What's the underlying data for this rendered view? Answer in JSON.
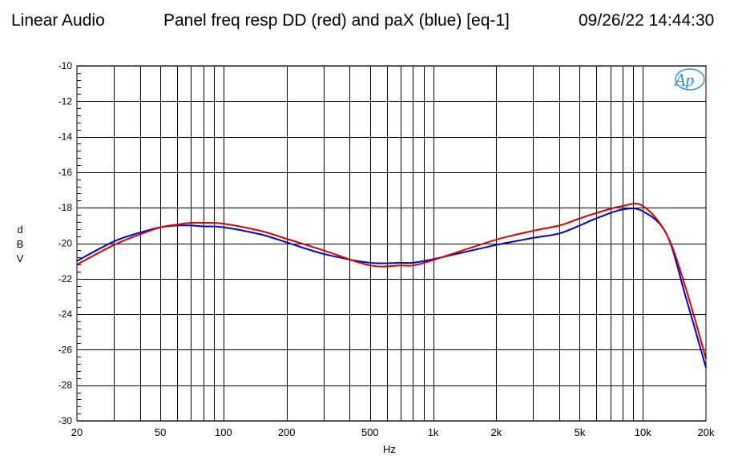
{
  "header": {
    "left": "Linear Audio",
    "title": "Panel freq resp DD (red) and paX (blue) [eq-1]",
    "timestamp": "09/26/22 14:44:30"
  },
  "logo": {
    "text": "Ap",
    "color": "#2a8fd0"
  },
  "axes": {
    "ylabel_lines": [
      "d",
      "B",
      "V"
    ],
    "xlabel": "Hz"
  },
  "chart_data": {
    "type": "line",
    "title": "Panel freq resp DD (red) and paX (blue) [eq-1]",
    "xlabel": "Hz",
    "ylabel": "dBV",
    "xscale": "log",
    "xlim": [
      20,
      20000
    ],
    "ylim": [
      -30,
      -10
    ],
    "xticks": [
      20,
      50,
      100,
      200,
      500,
      1000,
      2000,
      5000,
      10000,
      20000
    ],
    "xtick_labels": [
      "20",
      "50",
      "100",
      "200",
      "500",
      "1k",
      "2k",
      "5k",
      "10k",
      "20k"
    ],
    "yticks": [
      -10,
      -12,
      -14,
      -16,
      -18,
      -20,
      -22,
      -24,
      -26,
      -28,
      -30
    ],
    "ytick_labels": [
      "-10",
      "-12",
      "-14",
      "-16",
      "-18",
      "-20",
      "-22",
      "-24",
      "-26",
      "-28",
      "-30"
    ],
    "grid": true,
    "series": [
      {
        "name": "paX (blue)",
        "color": "#0000cc",
        "x": [
          20,
          30,
          40,
          50,
          60,
          70,
          80,
          100,
          150,
          200,
          300,
          500,
          700,
          800,
          1000,
          2000,
          3000,
          4000,
          5000,
          6000,
          8000,
          10000,
          13000,
          16000,
          20000
        ],
        "y": [
          -21.0,
          -19.9,
          -19.4,
          -19.1,
          -19.0,
          -19.0,
          -19.05,
          -19.1,
          -19.5,
          -19.95,
          -20.6,
          -21.1,
          -21.1,
          -21.1,
          -20.9,
          -20.1,
          -19.7,
          -19.45,
          -19.0,
          -18.6,
          -18.1,
          -18.2,
          -19.5,
          -23.0,
          -27.0
        ]
      },
      {
        "name": "DD (red)",
        "color": "#dd0000",
        "x": [
          20,
          30,
          40,
          50,
          60,
          70,
          80,
          100,
          150,
          200,
          300,
          500,
          700,
          800,
          1000,
          2000,
          3000,
          4000,
          5000,
          6000,
          8000,
          10000,
          13000,
          16000,
          20000
        ],
        "y": [
          -21.2,
          -20.1,
          -19.5,
          -19.1,
          -18.95,
          -18.85,
          -18.85,
          -18.9,
          -19.3,
          -19.75,
          -20.4,
          -21.25,
          -21.25,
          -21.25,
          -20.95,
          -19.8,
          -19.3,
          -19.0,
          -18.6,
          -18.3,
          -17.9,
          -17.9,
          -19.5,
          -22.5,
          -26.5
        ]
      }
    ]
  }
}
